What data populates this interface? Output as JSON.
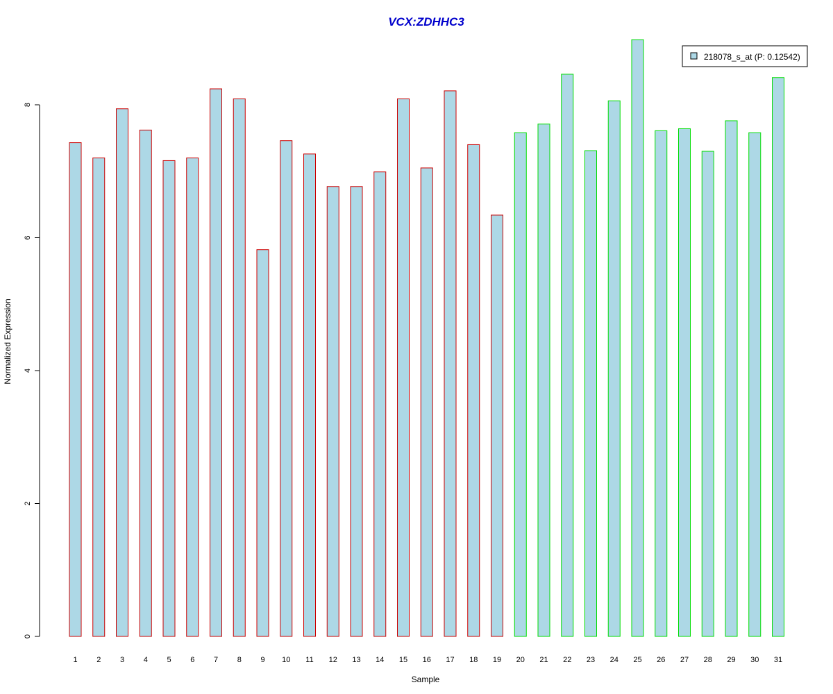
{
  "chart_data": {
    "type": "bar",
    "title": "VCX:ZDHHC3",
    "xlabel": "Sample",
    "ylabel": "Normalized Expression",
    "categories": [
      "1",
      "2",
      "3",
      "4",
      "5",
      "6",
      "7",
      "8",
      "9",
      "10",
      "11",
      "12",
      "13",
      "14",
      "15",
      "16",
      "17",
      "18",
      "19",
      "20",
      "21",
      "22",
      "23",
      "24",
      "25",
      "26",
      "27",
      "28",
      "29",
      "30",
      "31"
    ],
    "yticks": [
      "0",
      "2",
      "4",
      "6",
      "8"
    ],
    "ylim": [
      0,
      9
    ],
    "series": [
      {
        "name": "218078_s_at (P: 0.12542)",
        "values": [
          7.43,
          7.2,
          7.94,
          7.62,
          7.16,
          7.2,
          8.24,
          8.09,
          5.82,
          7.46,
          7.26,
          6.77,
          6.77,
          6.99,
          8.09,
          7.05,
          8.21,
          7.4,
          6.34,
          7.58,
          7.71,
          8.46,
          7.31,
          8.06,
          8.98,
          7.61,
          7.64,
          7.3,
          7.76,
          7.58,
          8.41
        ]
      }
    ],
    "group_edge_colors": [
      "#cc0000",
      "#cc0000",
      "#cc0000",
      "#cc0000",
      "#cc0000",
      "#cc0000",
      "#cc0000",
      "#cc0000",
      "#cc0000",
      "#cc0000",
      "#cc0000",
      "#cc0000",
      "#cc0000",
      "#cc0000",
      "#cc0000",
      "#cc0000",
      "#cc0000",
      "#cc0000",
      "#cc0000",
      "#00dd00",
      "#00dd00",
      "#00dd00",
      "#00dd00",
      "#00dd00",
      "#00dd00",
      "#00dd00",
      "#00dd00",
      "#00dd00",
      "#00dd00",
      "#00dd00",
      "#00dd00"
    ],
    "bar_fill": "#add8e6",
    "grid": false,
    "legend": "top-right"
  }
}
